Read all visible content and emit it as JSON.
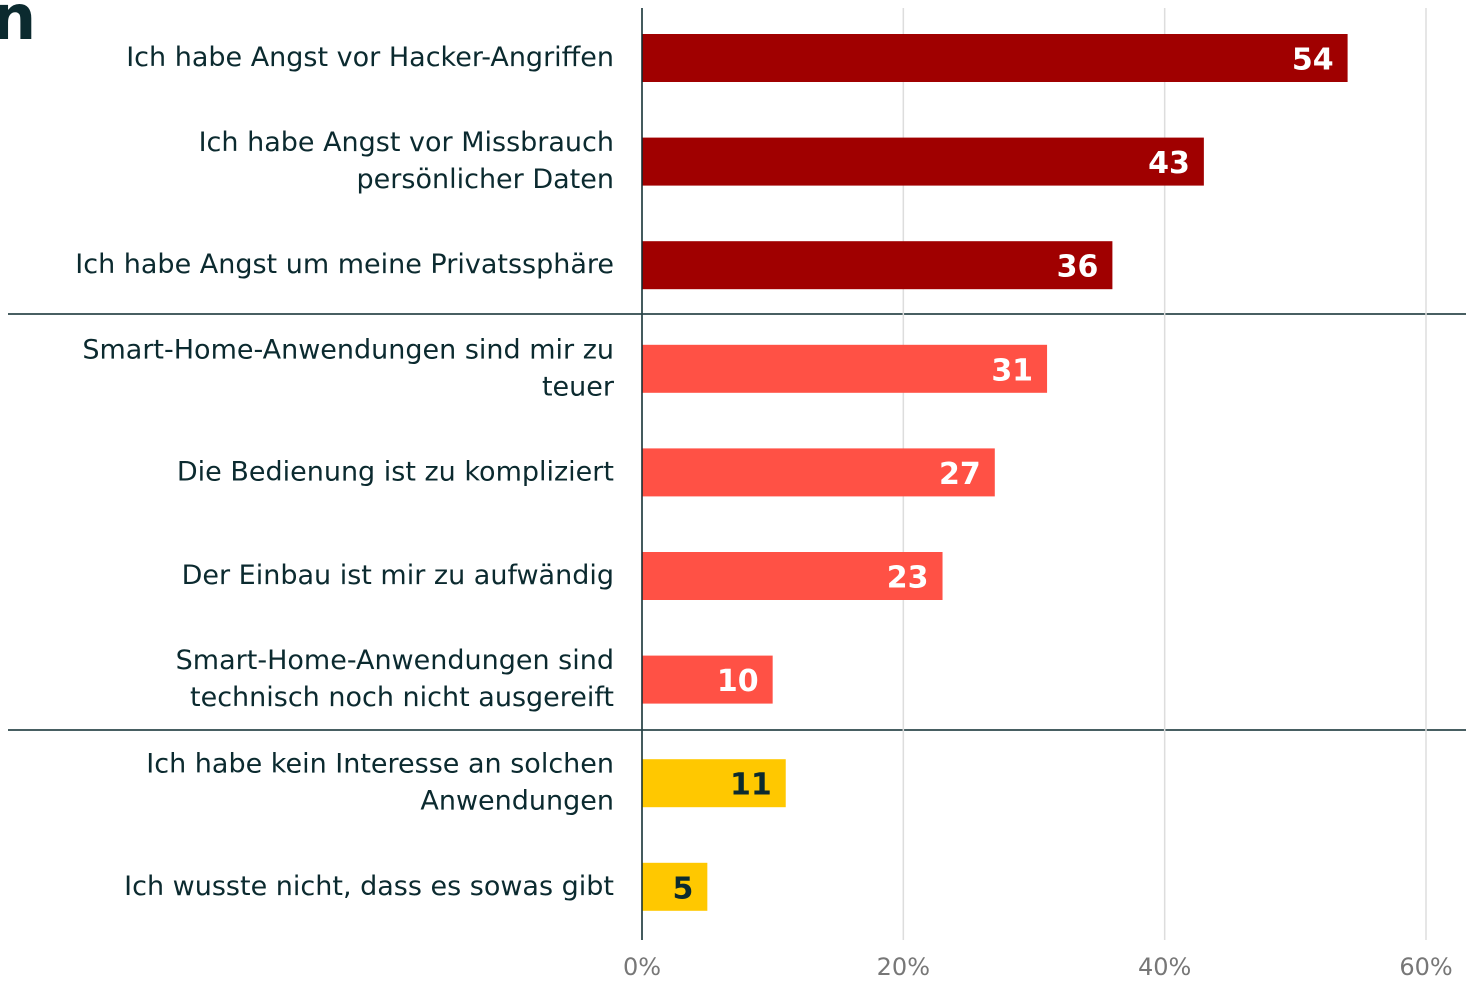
{
  "chart_data": {
    "type": "bar",
    "orientation": "horizontal",
    "title": "n",
    "categories": [
      "Ich habe Angst vor Hacker-Angriffen",
      "Ich habe Angst vor Missbrauch\npersönlicher Daten",
      "Ich habe Angst um meine Privatssphäre",
      "Smart-Home-Anwendungen sind mir zu\nteuer",
      "Die Bedienung ist zu kompliziert",
      "Der Einbau ist mir zu aufwändig",
      "Smart-Home-Anwendungen sind\ntechnisch noch nicht ausgereift",
      "Ich habe kein Interesse an solchen\nAnwendungen",
      "Ich wusste nicht, dass es sowas gibt"
    ],
    "values": [
      54,
      43,
      36,
      31,
      27,
      23,
      10,
      11,
      5
    ],
    "colors": [
      "#a00000",
      "#a00000",
      "#a00000",
      "#ff5145",
      "#ff5145",
      "#ff5145",
      "#ff5145",
      "#ffc800",
      "#ffc800"
    ],
    "xlim": [
      0,
      60
    ],
    "xticks": [
      {
        "value": 0,
        "label": "0%"
      },
      {
        "value": 20,
        "label": "20%"
      },
      {
        "value": 40,
        "label": "40%"
      },
      {
        "value": 60,
        "label": "60%"
      }
    ],
    "grid": true
  }
}
